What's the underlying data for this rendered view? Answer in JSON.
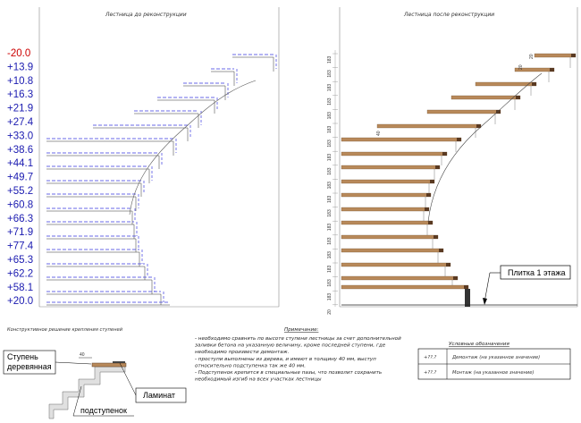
{
  "titles": {
    "before": "Лестница до реконструкции",
    "after": "Лестница после реконструкции",
    "construction": "Конструктивное решение крепления ступеней"
  },
  "levels": [
    {
      "value": "-20.0",
      "kind": "demolition"
    },
    {
      "value": "+13.9",
      "kind": "mounting"
    },
    {
      "value": "+10.8",
      "kind": "mounting"
    },
    {
      "value": "+16.3",
      "kind": "mounting"
    },
    {
      "value": "+21.9",
      "kind": "mounting"
    },
    {
      "value": "+27.4",
      "kind": "mounting"
    },
    {
      "value": "+33.0",
      "kind": "mounting"
    },
    {
      "value": "+38.6",
      "kind": "mounting"
    },
    {
      "value": "+44.1",
      "kind": "mounting"
    },
    {
      "value": "+49.7",
      "kind": "mounting"
    },
    {
      "value": "+55.2",
      "kind": "mounting"
    },
    {
      "value": "+60.8",
      "kind": "mounting"
    },
    {
      "value": "+66.3",
      "kind": "mounting"
    },
    {
      "value": "+71.9",
      "kind": "mounting"
    },
    {
      "value": "+77.4",
      "kind": "mounting"
    },
    {
      "value": "+65.3",
      "kind": "mounting"
    },
    {
      "value": "+62.2",
      "kind": "mounting"
    },
    {
      "value": "+58.1",
      "kind": "mounting"
    },
    {
      "value": "+20.0",
      "kind": "mounting"
    }
  ],
  "after_dims": {
    "riser_labels": [
      "183",
      "183",
      "183",
      "183",
      "183",
      "183",
      "183",
      "183",
      "183",
      "183",
      "183",
      "183",
      "183",
      "183",
      "183",
      "183",
      "183",
      "183",
      "20"
    ],
    "top_tread_label": "20",
    "top_tread_label2": "20",
    "tread_thickness_label": "40"
  },
  "callouts": {
    "tile": "Плитка 1 этажа",
    "step": "Ступень деревянная",
    "laminate": "Ламинат",
    "substep": "подступенок",
    "detail_dim": "40"
  },
  "notes": {
    "heading": "Примечание:",
    "lines": [
      "- необходимо сравнять по высоте ступени лестницы за счет дополнительной",
      "заливки бетона на указанную величину, кроме последней ступени, где",
      "необходимо произвести демонтаж.",
      "- проступи выполнены из дерева, и имеют в толщину 40 мм, выступ",
      "относительно подступенка так же 40 мм.",
      "- Подступенок крепится в специальные пазы, что позволит сохранить",
      "необходимый изгиб на всех участках лестницы"
    ]
  },
  "legend": {
    "heading": "Условные обозначения",
    "items": [
      {
        "sample": "+??.?",
        "label": "Демонтаж (на указанное значение)",
        "color": "#cc0000"
      },
      {
        "sample": "+??.?",
        "label": "Монтаж (на указанное значение)",
        "color": "#2222bb"
      }
    ]
  },
  "colors": {
    "demolition": "#cc0000",
    "mounting": "#1a1ab0",
    "wood": "#b8895a",
    "wood_dark": "#5a3a22",
    "dashed": "#3a3ae0"
  }
}
